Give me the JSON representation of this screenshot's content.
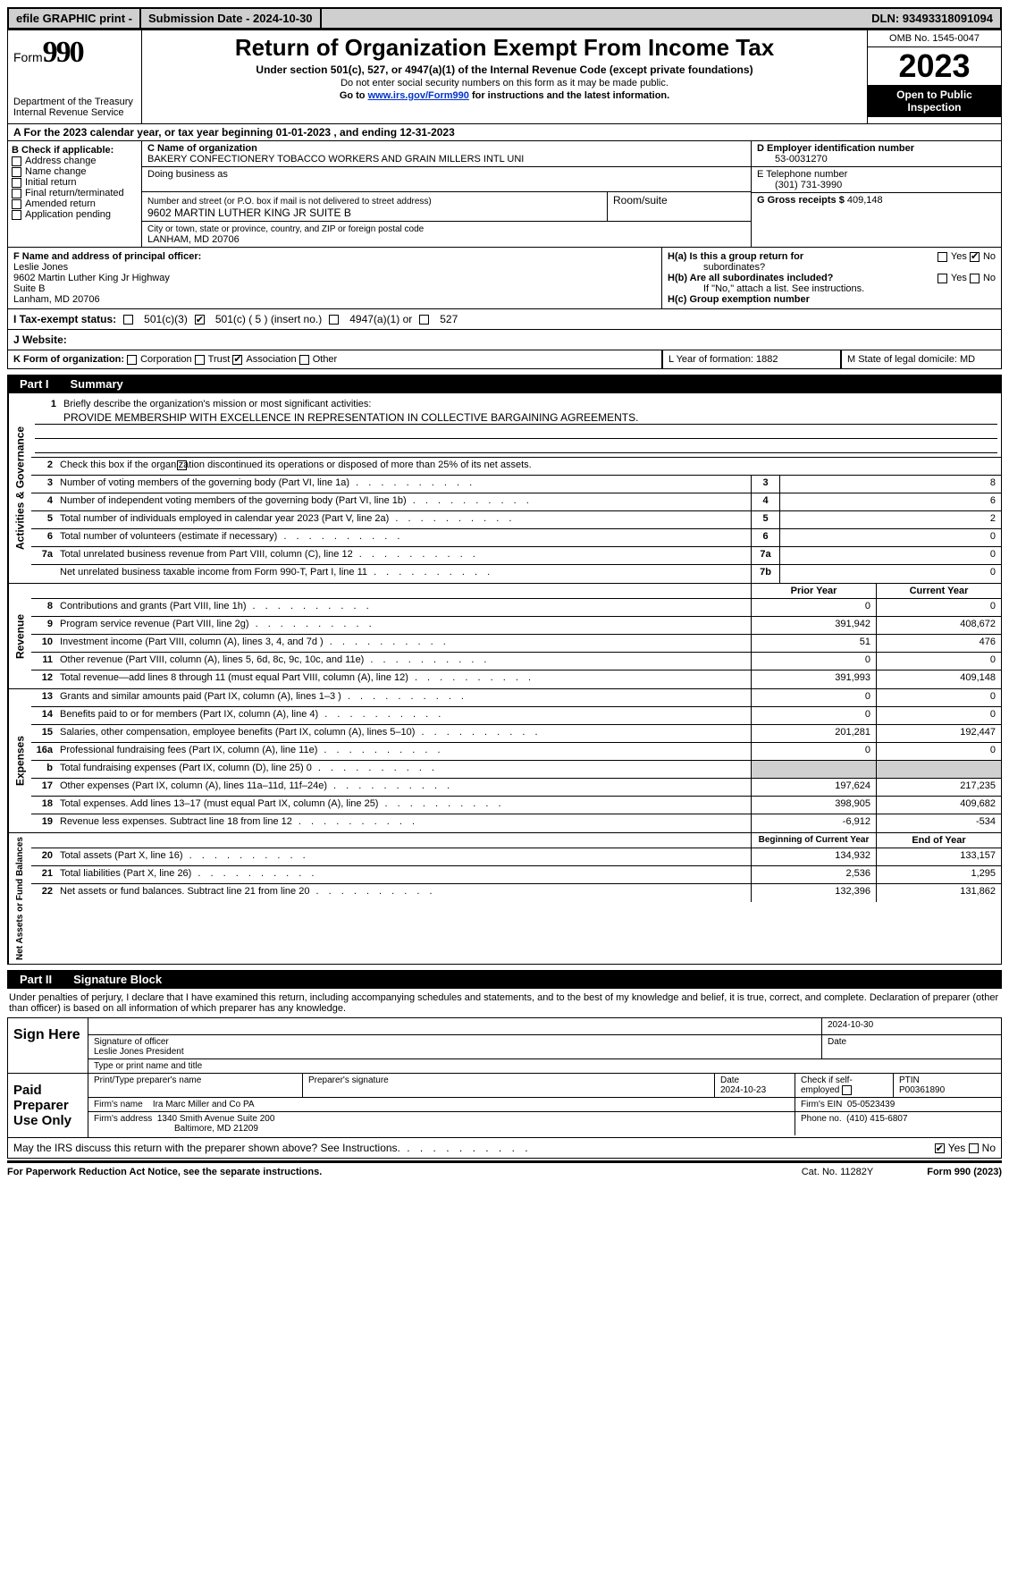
{
  "topbar": {
    "efile": "efile GRAPHIC print -",
    "submission": "Submission Date - 2024-10-30",
    "dln": "DLN: 93493318091094"
  },
  "header": {
    "form_label": "Form",
    "form_number": "990",
    "dept": "Department of the Treasury",
    "irs": "Internal Revenue Service",
    "title": "Return of Organization Exempt From Income Tax",
    "sub": "Under section 501(c), 527, or 4947(a)(1) of the Internal Revenue Code (except private foundations)",
    "note1": "Do not enter social security numbers on this form as it may be made public.",
    "note2_pre": "Go to ",
    "note2_link": "www.irs.gov/Form990",
    "note2_post": " for instructions and the latest information.",
    "omb": "OMB No. 1545-0047",
    "year": "2023",
    "open": "Open to Public Inspection"
  },
  "row_a": "A For the 2023 calendar year, or tax year beginning 01-01-2023    , and ending 12-31-2023",
  "col_b": {
    "title": "B Check if applicable:",
    "items": [
      "Address change",
      "Name change",
      "Initial return",
      "Final return/terminated",
      "Amended return",
      "Application pending"
    ]
  },
  "col_c": {
    "name_lbl": "C Name of organization",
    "name": "BAKERY CONFECTIONERY TOBACCO WORKERS AND GRAIN MILLERS INTL UNI",
    "dba_lbl": "Doing business as",
    "street_lbl": "Number and street (or P.O. box if mail is not delivered to street address)",
    "street": "9602 MARTIN LUTHER KING JR SUITE B",
    "room_lbl": "Room/suite",
    "city_lbl": "City or town, state or province, country, and ZIP or foreign postal code",
    "city": "LANHAM, MD  20706"
  },
  "col_d": {
    "ein_lbl": "D Employer identification number",
    "ein": "53-0031270",
    "phone_lbl": "E Telephone number",
    "phone": "(301) 731-3990",
    "gross_lbl": "G Gross receipts $",
    "gross": "409,148"
  },
  "f": {
    "lbl": "F Name and address of principal officer:",
    "name": "Leslie Jones",
    "l1": "9602 Martin Luther King Jr Highway",
    "l2": "Suite B",
    "l3": "Lanham, MD  20706"
  },
  "h": {
    "a_lbl": "H(a)  Is this a group return for",
    "a_sub": "subordinates?",
    "b_lbl": "H(b)  Are all subordinates included?",
    "b_note": "If \"No,\" attach a list. See instructions.",
    "c_lbl": "H(c)  Group exemption number"
  },
  "i": {
    "lbl": "I    Tax-exempt status:",
    "o1": "501(c)(3)",
    "o2": "501(c) ( 5 ) (insert no.)",
    "o3": "4947(a)(1) or",
    "o4": "527"
  },
  "j": {
    "lbl": "J   Website:"
  },
  "k": {
    "lbl": "K Form of organization:",
    "opts": [
      "Corporation",
      "Trust",
      "Association",
      "Other"
    ],
    "l_lbl": "L Year of formation: 1882",
    "m_lbl": "M State of legal domicile: MD"
  },
  "part1": {
    "tag": "Part I",
    "title": "Summary"
  },
  "summary": {
    "q1_lbl": "Briefly describe the organization's mission or most significant activities:",
    "q1_val": "PROVIDE MEMBERSHIP WITH EXCELLENCE IN REPRESENTATION IN COLLECTIVE BARGAINING AGREEMENTS.",
    "q2": "Check this box        if the organization discontinued its operations or disposed of more than 25% of its net assets.",
    "rows_top": [
      {
        "n": "3",
        "d": "Number of voting members of the governing body (Part VI, line 1a)",
        "box": "3",
        "v": "8"
      },
      {
        "n": "4",
        "d": "Number of independent voting members of the governing body (Part VI, line 1b)",
        "box": "4",
        "v": "6"
      },
      {
        "n": "5",
        "d": "Total number of individuals employed in calendar year 2023 (Part V, line 2a)",
        "box": "5",
        "v": "2"
      },
      {
        "n": "6",
        "d": "Total number of volunteers (estimate if necessary)",
        "box": "6",
        "v": "0"
      },
      {
        "n": "7a",
        "d": "Total unrelated business revenue from Part VIII, column (C), line 12",
        "box": "7a",
        "v": "0"
      },
      {
        "n": "",
        "d": "Net unrelated business taxable income from Form 990-T, Part I, line 11",
        "box": "7b",
        "v": "0"
      }
    ],
    "hdr_prior": "Prior Year",
    "hdr_current": "Current Year",
    "revenue": [
      {
        "n": "8",
        "d": "Contributions and grants (Part VIII, line 1h)",
        "c1": "0",
        "c2": "0"
      },
      {
        "n": "9",
        "d": "Program service revenue (Part VIII, line 2g)",
        "c1": "391,942",
        "c2": "408,672"
      },
      {
        "n": "10",
        "d": "Investment income (Part VIII, column (A), lines 3, 4, and 7d )",
        "c1": "51",
        "c2": "476"
      },
      {
        "n": "11",
        "d": "Other revenue (Part VIII, column (A), lines 5, 6d, 8c, 9c, 10c, and 11e)",
        "c1": "0",
        "c2": "0"
      },
      {
        "n": "12",
        "d": "Total revenue—add lines 8 through 11 (must equal Part VIII, column (A), line 12)",
        "c1": "391,993",
        "c2": "409,148"
      }
    ],
    "expenses": [
      {
        "n": "13",
        "d": "Grants and similar amounts paid (Part IX, column (A), lines 1–3 )",
        "c1": "0",
        "c2": "0"
      },
      {
        "n": "14",
        "d": "Benefits paid to or for members (Part IX, column (A), line 4)",
        "c1": "0",
        "c2": "0"
      },
      {
        "n": "15",
        "d": "Salaries, other compensation, employee benefits (Part IX, column (A), lines 5–10)",
        "c1": "201,281",
        "c2": "192,447"
      },
      {
        "n": "16a",
        "d": "Professional fundraising fees (Part IX, column (A), line 11e)",
        "c1": "0",
        "c2": "0"
      },
      {
        "n": "b",
        "d": "Total fundraising expenses (Part IX, column (D), line 25) 0",
        "c1": "__grey__",
        "c2": "__grey__"
      },
      {
        "n": "17",
        "d": "Other expenses (Part IX, column (A), lines 11a–11d, 11f–24e)",
        "c1": "197,624",
        "c2": "217,235"
      },
      {
        "n": "18",
        "d": "Total expenses. Add lines 13–17 (must equal Part IX, column (A), line 25)",
        "c1": "398,905",
        "c2": "409,682"
      },
      {
        "n": "19",
        "d": "Revenue less expenses. Subtract line 18 from line 12",
        "c1": "-6,912",
        "c2": "-534"
      }
    ],
    "hdr_begin": "Beginning of Current Year",
    "hdr_end": "End of Year",
    "netassets": [
      {
        "n": "20",
        "d": "Total assets (Part X, line 16)",
        "c1": "134,932",
        "c2": "133,157"
      },
      {
        "n": "21",
        "d": "Total liabilities (Part X, line 26)",
        "c1": "2,536",
        "c2": "1,295"
      },
      {
        "n": "22",
        "d": "Net assets or fund balances. Subtract line 21 from line 20",
        "c1": "132,396",
        "c2": "131,862"
      }
    ],
    "vlabels": {
      "gov": "Activities & Governance",
      "rev": "Revenue",
      "exp": "Expenses",
      "net": "Net Assets or Fund Balances"
    }
  },
  "part2": {
    "tag": "Part II",
    "title": "Signature Block"
  },
  "sig": {
    "note": "Under penalties of perjury, I declare that I have examined this return, including accompanying schedules and statements, and to the best of my knowledge and belief, it is true, correct, and complete. Declaration of preparer (other than officer) is based on all information of which preparer has any knowledge.",
    "sign_here": "Sign Here",
    "date_top": "2024-10-30",
    "sig_officer_lbl": "Signature of officer",
    "officer_name": "Leslie Jones  President",
    "type_lbl": "Type or print name and title",
    "date_lbl": "Date",
    "paid": "Paid Preparer Use Only",
    "prep_name_lbl": "Print/Type preparer's name",
    "prep_sig_lbl": "Preparer's signature",
    "prep_date_lbl": "Date",
    "prep_date": "2024-10-23",
    "check_lbl": "Check         if self-employed",
    "ptin_lbl": "PTIN",
    "ptin": "P00361890",
    "firm_name_lbl": "Firm's name",
    "firm_name": "Ira Marc Miller and Co PA",
    "firm_ein_lbl": "Firm's EIN",
    "firm_ein": "05-0523439",
    "firm_addr_lbl": "Firm's address",
    "firm_addr1": "1340 Smith Avenue Suite 200",
    "firm_addr2": "Baltimore, MD  21209",
    "phone_lbl": "Phone no.",
    "phone": "(410) 415-6807",
    "discuss": "May the IRS discuss this return with the preparer shown above? See Instructions."
  },
  "footer": {
    "left": "For Paperwork Reduction Act Notice, see the separate instructions.",
    "mid": "Cat. No. 11282Y",
    "right": "Form 990 (2023)"
  }
}
